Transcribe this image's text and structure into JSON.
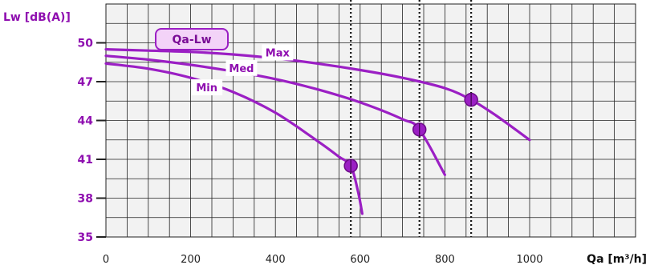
{
  "chart_data": {
    "type": "line",
    "title": "",
    "badge": "Qa-Lw",
    "ylabel": "Lw [dB(A)]",
    "xlabel": "Qa [m³/h]",
    "xlim": [
      0,
      1250
    ],
    "ylim": [
      35,
      53
    ],
    "xticks": [
      0,
      200,
      400,
      600,
      800,
      1000
    ],
    "yticks": [
      35,
      38,
      41,
      44,
      47,
      50
    ],
    "grid": true,
    "colors": {
      "curve": "#9b1fc4",
      "label": "#8f0fb0",
      "grid": "#222222",
      "plot_bg": "#f2f2f2",
      "badge_fill": "#f3d3f8"
    },
    "vertical_markers": [
      578,
      740,
      862
    ],
    "series": [
      {
        "name": "Min",
        "label_at": [
          238,
          46.5
        ],
        "operating_point": [
          578,
          40.5
        ],
        "points": [
          [
            0,
            48.4
          ],
          [
            100,
            48.0
          ],
          [
            200,
            47.3
          ],
          [
            300,
            46.2
          ],
          [
            400,
            44.6
          ],
          [
            500,
            42.4
          ],
          [
            550,
            41.2
          ],
          [
            578,
            40.5
          ],
          [
            595,
            38.5
          ],
          [
            605,
            36.8
          ]
        ]
      },
      {
        "name": "Med",
        "label_at": [
          320,
          48.0
        ],
        "operating_point": [
          740,
          43.3
        ],
        "points": [
          [
            0,
            49.0
          ],
          [
            100,
            48.7
          ],
          [
            200,
            48.3
          ],
          [
            300,
            47.8
          ],
          [
            400,
            47.2
          ],
          [
            500,
            46.4
          ],
          [
            600,
            45.4
          ],
          [
            700,
            44.1
          ],
          [
            740,
            43.3
          ],
          [
            800,
            39.8
          ]
        ]
      },
      {
        "name": "Max",
        "label_at": [
          405,
          49.2
        ],
        "operating_point": [
          862,
          45.6
        ],
        "points": [
          [
            0,
            49.5
          ],
          [
            100,
            49.4
          ],
          [
            200,
            49.3
          ],
          [
            300,
            49.1
          ],
          [
            400,
            48.8
          ],
          [
            500,
            48.4
          ],
          [
            600,
            47.9
          ],
          [
            700,
            47.3
          ],
          [
            800,
            46.5
          ],
          [
            862,
            45.6
          ],
          [
            920,
            44.4
          ],
          [
            1000,
            42.5
          ]
        ]
      }
    ]
  }
}
